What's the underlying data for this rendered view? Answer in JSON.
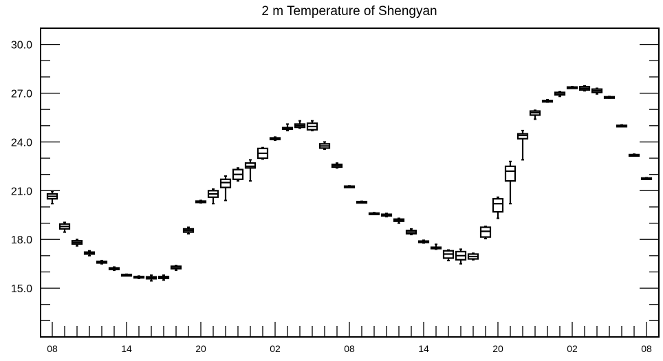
{
  "chart_data": {
    "type": "box",
    "title": "2 m Temperature of Shengyan",
    "xlabel": "",
    "ylabel": "",
    "ylim": [
      12.0,
      31.0
    ],
    "y_ticks": [
      "15.0",
      "18.0",
      "21.0",
      "24.0",
      "27.0",
      "30.0"
    ],
    "x_index_range": [
      0,
      48
    ],
    "x_ticks": [
      {
        "i": 0,
        "label": "08"
      },
      {
        "i": 6,
        "label": "14"
      },
      {
        "i": 12,
        "label": "20"
      },
      {
        "i": 18,
        "label": "02"
      },
      {
        "i": 24,
        "label": "08"
      },
      {
        "i": 30,
        "label": "14"
      },
      {
        "i": 36,
        "label": "20"
      },
      {
        "i": 42,
        "label": "02"
      },
      {
        "i": 48,
        "label": "08"
      }
    ],
    "grid": false,
    "boxes": [
      {
        "i": 0,
        "min": 20.2,
        "q1": 20.5,
        "median": 20.65,
        "q3": 20.8,
        "max": 20.95
      },
      {
        "i": 1,
        "min": 18.45,
        "q1": 18.65,
        "median": 18.8,
        "q3": 18.95,
        "max": 19.05
      },
      {
        "i": 2,
        "min": 17.6,
        "q1": 17.72,
        "median": 17.82,
        "q3": 17.92,
        "max": 18.0
      },
      {
        "i": 3,
        "min": 17.0,
        "q1": 17.1,
        "median": 17.15,
        "q3": 17.22,
        "max": 17.3
      },
      {
        "i": 4,
        "min": 16.5,
        "q1": 16.55,
        "median": 16.6,
        "q3": 16.65,
        "max": 16.7
      },
      {
        "i": 5,
        "min": 16.1,
        "q1": 16.15,
        "median": 16.2,
        "q3": 16.25,
        "max": 16.3
      },
      {
        "i": 6,
        "min": 15.78,
        "q1": 15.8,
        "median": 15.82,
        "q3": 15.84,
        "max": 15.86
      },
      {
        "i": 7,
        "min": 15.6,
        "q1": 15.65,
        "median": 15.68,
        "q3": 15.72,
        "max": 15.75
      },
      {
        "i": 8,
        "min": 15.45,
        "q1": 15.58,
        "median": 15.62,
        "q3": 15.7,
        "max": 15.8
      },
      {
        "i": 9,
        "min": 15.5,
        "q1": 15.6,
        "median": 15.65,
        "q3": 15.72,
        "max": 15.8
      },
      {
        "i": 10,
        "min": 16.1,
        "q1": 16.2,
        "median": 16.25,
        "q3": 16.35,
        "max": 16.4
      },
      {
        "i": 11,
        "min": 18.35,
        "q1": 18.45,
        "median": 18.55,
        "q3": 18.65,
        "max": 18.75
      },
      {
        "i": 12,
        "min": 20.25,
        "q1": 20.28,
        "median": 20.32,
        "q3": 20.36,
        "max": 20.4
      },
      {
        "i": 13,
        "min": 20.2,
        "q1": 20.6,
        "median": 20.8,
        "q3": 21.0,
        "max": 21.1
      },
      {
        "i": 14,
        "min": 20.4,
        "q1": 21.2,
        "median": 21.5,
        "q3": 21.7,
        "max": 21.9
      },
      {
        "i": 15,
        "min": 21.6,
        "q1": 21.7,
        "median": 22.0,
        "q3": 22.3,
        "max": 22.4
      },
      {
        "i": 16,
        "min": 21.6,
        "q1": 22.4,
        "median": 22.5,
        "q3": 22.7,
        "max": 22.9
      },
      {
        "i": 17,
        "min": 22.95,
        "q1": 23.0,
        "median": 23.3,
        "q3": 23.6,
        "max": 23.65
      },
      {
        "i": 18,
        "min": 24.1,
        "q1": 24.15,
        "median": 24.2,
        "q3": 24.25,
        "max": 24.3
      },
      {
        "i": 19,
        "min": 24.7,
        "q1": 24.78,
        "median": 24.82,
        "q3": 24.88,
        "max": 25.1
      },
      {
        "i": 20,
        "min": 24.85,
        "q1": 24.9,
        "median": 25.0,
        "q3": 25.1,
        "max": 25.3
      },
      {
        "i": 21,
        "min": 24.7,
        "q1": 24.75,
        "median": 24.95,
        "q3": 25.15,
        "max": 25.3
      },
      {
        "i": 22,
        "min": 23.55,
        "q1": 23.62,
        "median": 23.75,
        "q3": 23.88,
        "max": 24.0
      },
      {
        "i": 23,
        "min": 22.4,
        "q1": 22.45,
        "median": 22.55,
        "q3": 22.62,
        "max": 22.7
      },
      {
        "i": 24,
        "min": 21.25,
        "q1": 21.26,
        "median": 21.27,
        "q3": 21.28,
        "max": 21.3
      },
      {
        "i": 25,
        "min": 20.25,
        "q1": 20.27,
        "median": 20.3,
        "q3": 20.33,
        "max": 20.35
      },
      {
        "i": 26,
        "min": 19.55,
        "q1": 19.57,
        "median": 19.6,
        "q3": 19.62,
        "max": 19.65
      },
      {
        "i": 27,
        "min": 19.4,
        "q1": 19.45,
        "median": 19.5,
        "q3": 19.55,
        "max": 19.6
      },
      {
        "i": 28,
        "min": 19.0,
        "q1": 19.12,
        "median": 19.2,
        "q3": 19.25,
        "max": 19.3
      },
      {
        "i": 29,
        "min": 18.3,
        "q1": 18.35,
        "median": 18.45,
        "q3": 18.55,
        "max": 18.65
      },
      {
        "i": 30,
        "min": 17.78,
        "q1": 17.82,
        "median": 17.85,
        "q3": 17.9,
        "max": 17.95
      },
      {
        "i": 31,
        "min": 17.4,
        "q1": 17.45,
        "median": 17.48,
        "q3": 17.52,
        "max": 17.7
      },
      {
        "i": 32,
        "min": 16.7,
        "q1": 16.85,
        "median": 17.1,
        "q3": 17.3,
        "max": 17.35
      },
      {
        "i": 33,
        "min": 16.5,
        "q1": 16.75,
        "median": 17.0,
        "q3": 17.25,
        "max": 17.4
      },
      {
        "i": 34,
        "min": 16.75,
        "q1": 16.8,
        "median": 16.95,
        "q3": 17.1,
        "max": 17.15
      },
      {
        "i": 35,
        "min": 18.05,
        "q1": 18.15,
        "median": 18.5,
        "q3": 18.75,
        "max": 18.8
      },
      {
        "i": 36,
        "min": 19.3,
        "q1": 19.7,
        "median": 20.2,
        "q3": 20.5,
        "max": 20.6
      },
      {
        "i": 37,
        "min": 20.2,
        "q1": 21.6,
        "median": 22.2,
        "q3": 22.5,
        "max": 22.8
      },
      {
        "i": 38,
        "min": 22.9,
        "q1": 24.2,
        "median": 24.4,
        "q3": 24.5,
        "max": 24.7
      },
      {
        "i": 39,
        "min": 25.4,
        "q1": 25.65,
        "median": 25.8,
        "q3": 25.9,
        "max": 25.95
      },
      {
        "i": 40,
        "min": 26.45,
        "q1": 26.5,
        "median": 26.52,
        "q3": 26.55,
        "max": 26.6
      },
      {
        "i": 41,
        "min": 26.8,
        "q1": 26.9,
        "median": 27.0,
        "q3": 27.05,
        "max": 27.1
      },
      {
        "i": 42,
        "min": 27.3,
        "q1": 27.32,
        "median": 27.35,
        "q3": 27.38,
        "max": 27.4
      },
      {
        "i": 43,
        "min": 27.15,
        "q1": 27.2,
        "median": 27.3,
        "q3": 27.4,
        "max": 27.45
      },
      {
        "i": 44,
        "min": 26.95,
        "q1": 27.05,
        "median": 27.15,
        "q3": 27.25,
        "max": 27.3
      },
      {
        "i": 45,
        "min": 26.7,
        "q1": 26.72,
        "median": 26.75,
        "q3": 26.78,
        "max": 26.8
      },
      {
        "i": 46,
        "min": 24.95,
        "q1": 24.97,
        "median": 25.0,
        "q3": 25.02,
        "max": 25.05
      },
      {
        "i": 47,
        "min": 23.15,
        "q1": 23.17,
        "median": 23.2,
        "q3": 23.22,
        "max": 23.25
      },
      {
        "i": 48,
        "min": 21.7,
        "q1": 21.72,
        "median": 21.75,
        "q3": 21.78,
        "max": 21.8
      }
    ]
  }
}
